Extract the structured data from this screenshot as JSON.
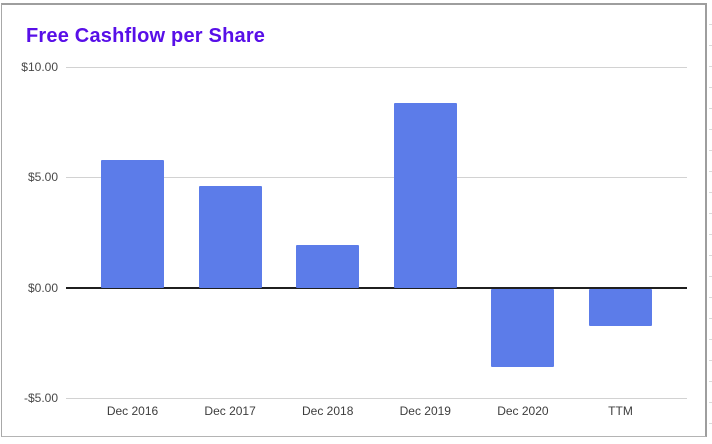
{
  "chart": {
    "title": "Free Cashflow per Share",
    "title_color": "#580fe8",
    "bar_color": "#5c7ce9",
    "border_color": "#9e9e9e",
    "gridline_color": "#d2d2d2",
    "zero_line_color": "#1f1f1f",
    "axis_label_color": "#3d3d3d"
  },
  "chart_data": {
    "type": "bar",
    "title": "Free Cashflow per Share",
    "categories": [
      "Dec 2016",
      "Dec 2017",
      "Dec 2018",
      "Dec 2019",
      "Dec 2020",
      "TTM"
    ],
    "values": [
      5.8,
      4.6,
      1.95,
      8.35,
      -3.55,
      -1.7
    ],
    "xlabel": "",
    "ylabel": "",
    "ylim": [
      -5,
      10
    ],
    "y_ticks": [
      {
        "label": "$10.00",
        "value": 10
      },
      {
        "label": "$5.00",
        "value": 5
      },
      {
        "label": "$0.00",
        "value": 0
      },
      {
        "label": "-$5.00",
        "value": -5
      }
    ],
    "grid": true,
    "legend": "none"
  }
}
